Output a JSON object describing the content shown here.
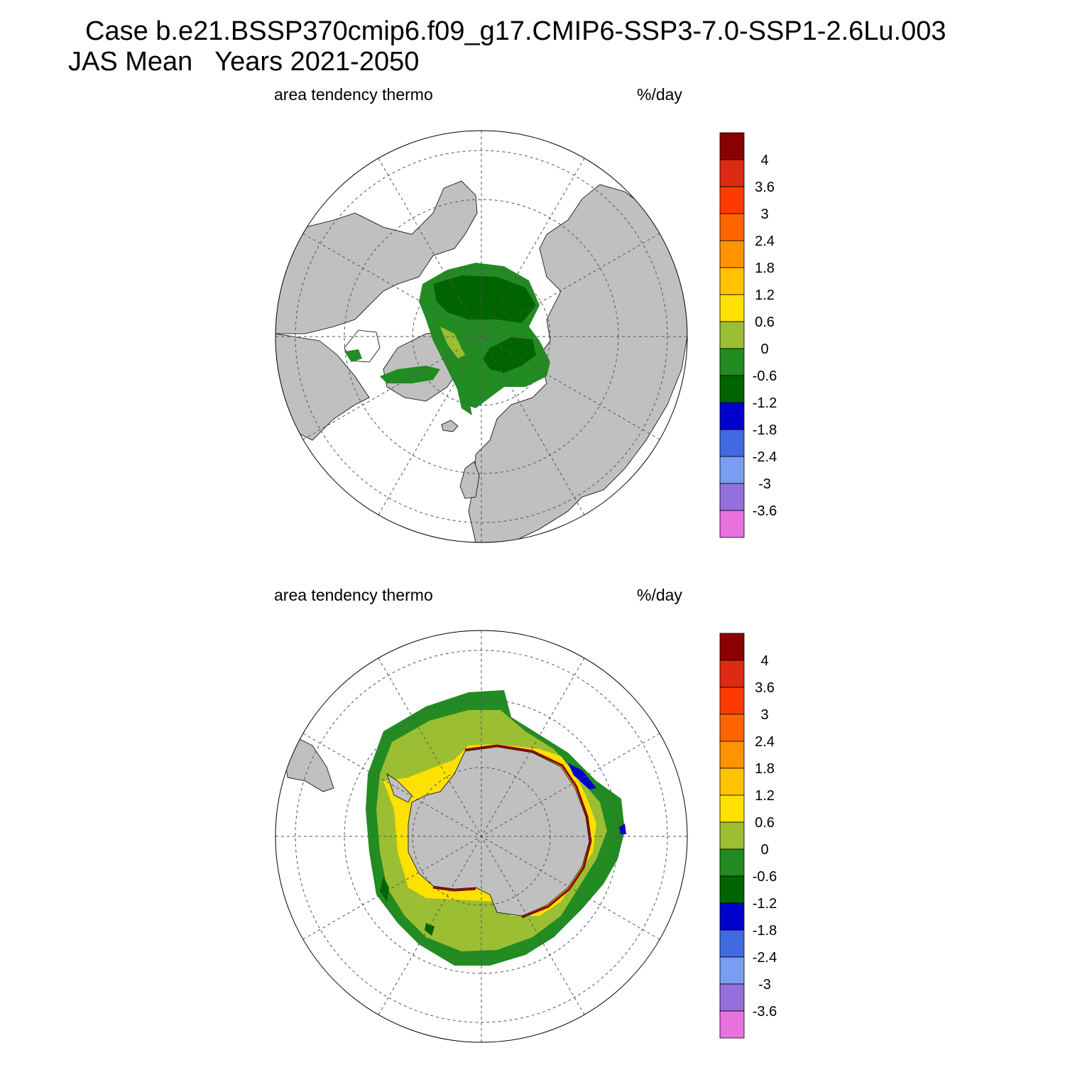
{
  "header": {
    "case_line": "Case b.e21.BSSP370cmip6.f09_g17.CMIP6-SSP3-7.0-SSP1-2.6Lu.003",
    "period_line": "JAS Mean   Years 2021-2050"
  },
  "panels": [
    {
      "id": "north",
      "variable": "area tendency thermo",
      "units": "%/day"
    },
    {
      "id": "south",
      "variable": "area tendency thermo",
      "units": "%/day"
    }
  ],
  "colorbar": {
    "labels": [
      "4",
      "3.6",
      "3",
      "2.4",
      "1.8",
      "1.2",
      "0.6",
      "0",
      "-0.6",
      "-1.2",
      "-1.8",
      "-2.4",
      "-3",
      "-3.6"
    ],
    "colors": [
      "#8b0000",
      "#dd2a12",
      "#ff3a00",
      "#ff6600",
      "#ff9300",
      "#ffc300",
      "#ffe100",
      "#9bbe32",
      "#228b22",
      "#006400",
      "#0000cd",
      "#4169e1",
      "#7a9df2",
      "#9370db",
      "#e873df"
    ]
  },
  "colors": {
    "land": "#c0c0c0",
    "no_data": "#ffffff",
    "grid": "#555555"
  }
}
